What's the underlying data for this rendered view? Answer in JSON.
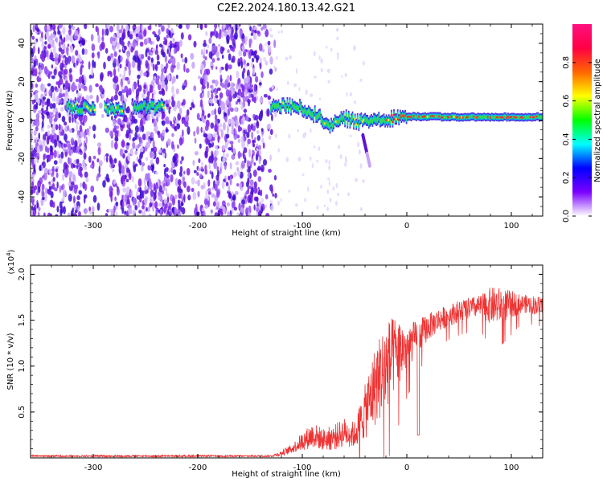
{
  "title": "C2E2.2024.180.13.42.G21",
  "colors": {
    "snr_line": "#ee3333",
    "spectrogram_noise": "#7a1fe6",
    "spectrogram_signal_core": "#e8393a",
    "spectrogram_signal_mid": "#33dd55",
    "spectrogram_signal_edge": "#00bbee"
  },
  "chart_data": [
    {
      "type": "heatmap",
      "name": "spectrogram",
      "xlabel": "Height of straight line (km)",
      "ylabel": "Frequency (Hz)",
      "xlim": [
        -360,
        130
      ],
      "ylim": [
        -50,
        50
      ],
      "x_ticks": [
        -300,
        -200,
        -100,
        0,
        100
      ],
      "x_tick_labels": [
        "-300",
        "-200",
        "-100",
        "0",
        "100"
      ],
      "y_ticks": [
        -40,
        -20,
        0,
        20,
        40
      ],
      "y_tick_labels": [
        "-40",
        "-20",
        "0",
        "20",
        "40"
      ],
      "colorbar": {
        "label": "Normalized spectral amplitude",
        "range": [
          0,
          1
        ],
        "ticks": [
          0.0,
          0.2,
          0.4,
          0.6,
          0.8
        ],
        "tick_labels": [
          "0.0",
          "0.2",
          "0.4",
          "0.6",
          "0.8"
        ],
        "colormap": [
          "#ffffff",
          "#7b00ff",
          "#0000ff",
          "#00ffff",
          "#00ff00",
          "#ffff00",
          "#ff6600",
          "#ff0044",
          "#ff1080"
        ]
      },
      "noise_region_x": [
        -360,
        -135
      ],
      "signal_trace": [
        {
          "x": -325,
          "y": 6.5,
          "amp": 0.55
        },
        {
          "x": -300,
          "y": 6.0,
          "amp": 0.6
        },
        {
          "x": -280,
          "y": 6.0,
          "amp": 0.45
        },
        {
          "x": -255,
          "y": 6.5,
          "amp": 0.5
        },
        {
          "x": -232,
          "y": 7.0,
          "amp": 0.5
        },
        {
          "x": -130,
          "y": 7.0,
          "amp": 0.6
        },
        {
          "x": -115,
          "y": 7.5,
          "amp": 0.65
        },
        {
          "x": -100,
          "y": 6.0,
          "amp": 0.65
        },
        {
          "x": -85,
          "y": 2.0,
          "amp": 0.7
        },
        {
          "x": -72,
          "y": -3.0,
          "amp": 0.65
        },
        {
          "x": -60,
          "y": 1.0,
          "amp": 0.7
        },
        {
          "x": -45,
          "y": -1.0,
          "amp": 0.7
        },
        {
          "x": -30,
          "y": 0.5,
          "amp": 0.75
        },
        {
          "x": -15,
          "y": 1.0,
          "amp": 0.8
        },
        {
          "x": 0,
          "y": 1.8,
          "amp": 0.85
        },
        {
          "x": 25,
          "y": 1.8,
          "amp": 0.88
        },
        {
          "x": 50,
          "y": 1.6,
          "amp": 0.9
        },
        {
          "x": 75,
          "y": 1.6,
          "amp": 0.92
        },
        {
          "x": 100,
          "y": 1.6,
          "amp": 0.9
        },
        {
          "x": 130,
          "y": 1.6,
          "amp": 0.9
        }
      ]
    },
    {
      "type": "line",
      "name": "snr",
      "xlabel": "Height of straight line (km)",
      "ylabel": "SNR (10 * v/v)",
      "y_multiplier_label": "(x10^4)",
      "xlim": [
        -360,
        130
      ],
      "ylim": [
        0,
        2.1
      ],
      "x_ticks": [
        -300,
        -200,
        -100,
        0,
        100
      ],
      "x_tick_labels": [
        "-300",
        "-200",
        "-100",
        "0",
        "100"
      ],
      "y_ticks": [
        0.5,
        1.0,
        1.5,
        2.0
      ],
      "y_tick_labels": [
        "0.5",
        "1.0",
        "1.5",
        "2.0"
      ],
      "series_envelope": {
        "x": [
          -360,
          -130,
          -120,
          -110,
          -100,
          -90,
          -80,
          -70,
          -60,
          -50,
          -40,
          -30,
          -20,
          -10,
          0,
          10,
          20,
          30,
          40,
          50,
          60,
          70,
          80,
          90,
          100,
          110,
          120,
          130
        ],
        "mean": [
          0.02,
          0.02,
          0.05,
          0.1,
          0.18,
          0.25,
          0.2,
          0.22,
          0.28,
          0.25,
          0.5,
          0.8,
          1.0,
          1.15,
          1.2,
          1.32,
          1.42,
          1.5,
          1.55,
          1.6,
          1.63,
          1.65,
          1.66,
          1.66,
          1.67,
          1.68,
          1.67,
          1.65
        ],
        "noise": [
          0.01,
          0.01,
          0.03,
          0.05,
          0.1,
          0.14,
          0.12,
          0.14,
          0.16,
          0.14,
          0.3,
          0.45,
          0.5,
          0.4,
          0.25,
          0.18,
          0.15,
          0.13,
          0.12,
          0.12,
          0.12,
          0.12,
          0.2,
          0.2,
          0.15,
          0.1,
          0.1,
          0.1
        ]
      }
    }
  ]
}
